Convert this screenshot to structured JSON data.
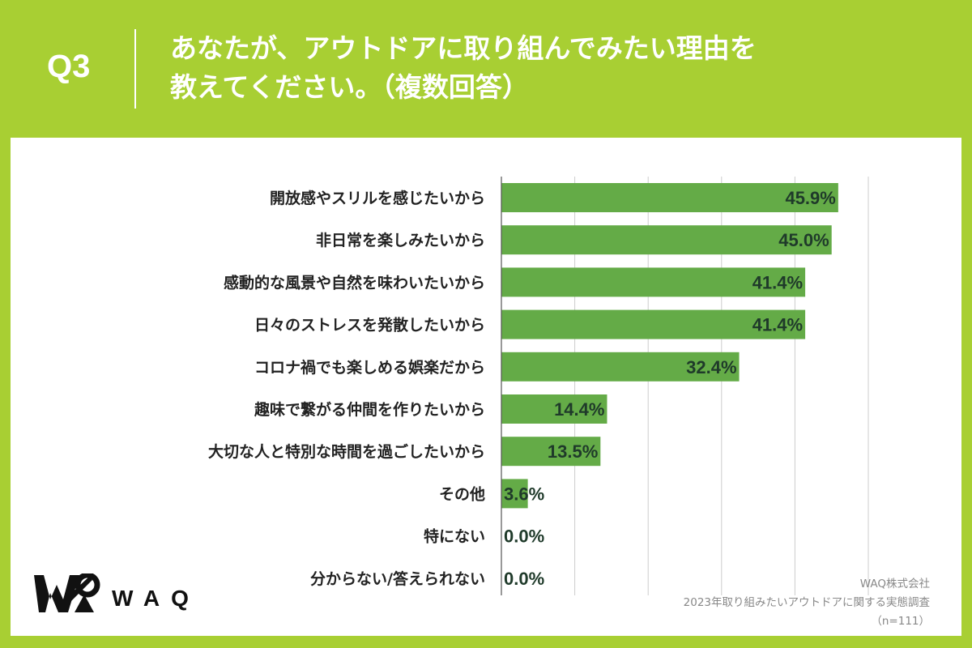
{
  "header": {
    "question": "Q3",
    "title_line1": "あなたが、アウトドアに取り組んでみたい理由を",
    "title_line2": "教えてください。（複数回答）"
  },
  "logo": {
    "text": "WAQ"
  },
  "footer": {
    "company": "WAQ株式会社",
    "survey": "2023年取り組みたいアウトドアに関する実態調査",
    "sample": "（n=111）"
  },
  "colors": {
    "background": "#a8cf33",
    "bar": "#64ab47",
    "panel": "#ffffff",
    "grid": "#cccccc"
  },
  "chart_data": {
    "type": "bar",
    "orientation": "horizontal",
    "title": "あなたが、アウトドアに取り組んでみたい理由を教えてください。（複数回答）",
    "categories": [
      "開放感やスリルを感じたいから",
      "非日常を楽しみたいから",
      "感動的な風景や自然を味わいたいから",
      "日々のストレスを発散したいから",
      "コロナ禍でも楽しめる娯楽だから",
      "趣味で繋がる仲間を作りたいから",
      "大切な人と特別な時間を過ごしたいから",
      "その他",
      "特にない",
      "分からない/答えられない"
    ],
    "values": [
      45.9,
      45.0,
      41.4,
      41.4,
      32.4,
      14.4,
      13.5,
      3.6,
      0.0,
      0.0
    ],
    "value_labels": [
      "45.9%",
      "45.0%",
      "41.4%",
      "41.4%",
      "32.4%",
      "14.4%",
      "13.5%",
      "3.6%",
      "0.0%",
      "0.0%"
    ],
    "xlim": [
      0,
      50
    ],
    "grid": true,
    "grid_step": 10,
    "legend": "none"
  }
}
